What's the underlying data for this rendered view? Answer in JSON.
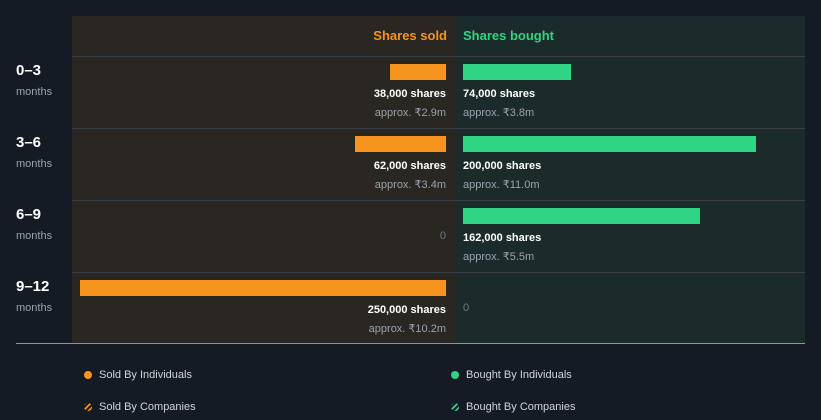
{
  "headers": {
    "sold": "Shares sold",
    "bought": "Shares bought"
  },
  "colors": {
    "sold": "#f7941d",
    "bought": "#2fd582"
  },
  "chart_data": {
    "type": "bar",
    "orientation": "horizontal-diverging",
    "categories": [
      "0–3 months",
      "3–6 months",
      "6–9 months",
      "9–12 months"
    ],
    "series": [
      {
        "name": "Shares sold",
        "values": [
          38000,
          62000,
          0,
          250000
        ]
      },
      {
        "name": "Shares bought",
        "values": [
          74000,
          200000,
          162000,
          0
        ]
      }
    ]
  },
  "rows": [
    {
      "period": "0–3",
      "unit": "months",
      "sold": 38000,
      "sold_label": "38,000 shares",
      "sold_approx": "approx. ₹2.9m",
      "bought": 74000,
      "bought_label": "74,000 shares",
      "bought_approx": "approx. ₹3.8m"
    },
    {
      "period": "3–6",
      "unit": "months",
      "sold": 62000,
      "sold_label": "62,000 shares",
      "sold_approx": "approx. ₹3.4m",
      "bought": 200000,
      "bought_label": "200,000 shares",
      "bought_approx": "approx. ₹11.0m"
    },
    {
      "period": "6–9",
      "unit": "months",
      "sold": 0,
      "sold_label": "0",
      "sold_approx": "",
      "bought": 162000,
      "bought_label": "162,000 shares",
      "bought_approx": "approx. ₹5.5m"
    },
    {
      "period": "9–12",
      "unit": "months",
      "sold": 250000,
      "sold_label": "250,000 shares",
      "sold_approx": "approx. ₹10.2m",
      "bought": 0,
      "bought_label": "0",
      "bought_approx": ""
    }
  ],
  "legend": {
    "sold_individuals": "Sold By Individuals",
    "bought_individuals": "Bought By Individuals",
    "sold_companies": "Sold By Companies",
    "bought_companies": "Bought By Companies"
  }
}
